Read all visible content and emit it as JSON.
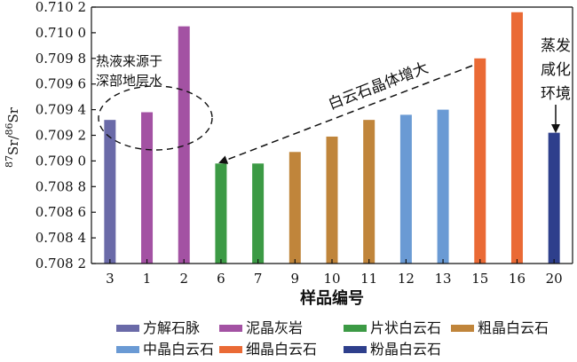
{
  "chart_data": {
    "type": "bar",
    "ylabel": "87Sr/86Sr",
    "ylabel_parts": {
      "sup1": "87",
      "base1": "Sr/",
      "sup2": "86",
      "base2": "Sr"
    },
    "xlabel": "样品编号",
    "ylim": [
      0.7082,
      0.7102
    ],
    "yticks": [
      0.7082,
      0.7084,
      0.7086,
      0.7088,
      0.709,
      0.7092,
      0.7094,
      0.7096,
      0.7098,
      0.71,
      0.7102
    ],
    "ytick_labels": [
      "0.708 2",
      "0.708 4",
      "0.708 6",
      "0.708 8",
      "0.709 0",
      "0.709 2",
      "0.709 4",
      "0.709 6",
      "0.709 8",
      "0.710 0",
      "0.710 2"
    ],
    "categories": [
      "3",
      "1",
      "2",
      "6",
      "7",
      "9",
      "10",
      "11",
      "12",
      "13",
      "15",
      "16",
      "20"
    ],
    "values": [
      0.70932,
      0.70938,
      0.71005,
      0.70898,
      0.70898,
      0.70907,
      0.70919,
      0.70932,
      0.70936,
      0.7094,
      0.7098,
      0.71016,
      0.70922
    ],
    "bar_groups": [
      "方解石脉",
      "泥晶灰岩",
      "泥晶灰岩",
      "片状白云石",
      "片状白云石",
      "粗晶白云石",
      "粗晶白云石",
      "粗晶白云石",
      "中晶白云石",
      "中晶白云石",
      "细晶白云石",
      "细晶白云石",
      "粉晶白云石"
    ],
    "legend": [
      {
        "name": "方解石脉",
        "color": "#6a6aa8"
      },
      {
        "name": "泥晶灰岩",
        "color": "#a352a3"
      },
      {
        "name": "片状白云石",
        "color": "#3c9a45"
      },
      {
        "name": "粗晶白云石",
        "color": "#c0853b"
      },
      {
        "name": "中晶白云石",
        "color": "#6a9ad4"
      },
      {
        "name": "细晶白云石",
        "color": "#ea6a35"
      },
      {
        "name": "粉晶白云石",
        "color": "#2e3f8c"
      }
    ],
    "legend_placement": "bottom",
    "grid": false,
    "annotations": {
      "source_line1": "热液来源于",
      "source_line2": "深部地层水",
      "trend_label": "白云石晶体增大",
      "env_line1": "蒸发",
      "env_line2": "咸化",
      "env_line3": "环境"
    }
  }
}
